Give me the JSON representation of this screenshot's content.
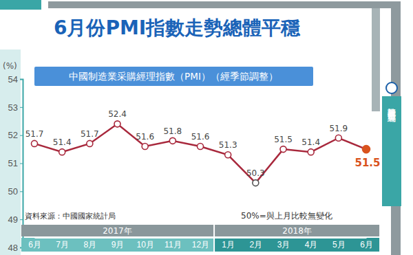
{
  "chart_data": {
    "type": "line",
    "title": "6月份PMI指數走勢總體平穩",
    "subtitle": "中國制造業采購經理指數（PMI）（經季節調整）",
    "y_label": "(%)",
    "categories": [
      "6月",
      "7月",
      "8月",
      "9月",
      "10月",
      "11月",
      "12月",
      "1月",
      "2月",
      "3月",
      "4月",
      "5月",
      "6月"
    ],
    "groups": [
      {
        "label": "2017年",
        "from": 0,
        "to": 6
      },
      {
        "label": "2018年",
        "from": 7,
        "to": 12
      }
    ],
    "values": [
      51.7,
      51.4,
      51.7,
      52.4,
      51.6,
      51.8,
      51.6,
      51.3,
      50.3,
      51.5,
      51.4,
      51.9,
      51.5
    ],
    "color": "#a8283c",
    "colors": [
      "#a8283c",
      "#a8283c",
      "#a8283c",
      "#a8283c",
      "#a8283c",
      "#a8283c",
      "#a8283c",
      "#a8283c",
      "#555555",
      "#a8283c",
      "#a8283c",
      "#a8283c",
      "#d9531e"
    ],
    "marker": "circle",
    "data_labels": true,
    "grid": false,
    "ylim": [
      48,
      54
    ],
    "yticks": [
      48,
      49,
      50,
      51,
      52,
      53,
      54
    ],
    "source": "資料來源：中國國家統計局",
    "note": "50%=與上月比較無變化",
    "credit": "新華社記者 盧哲 編製"
  }
}
